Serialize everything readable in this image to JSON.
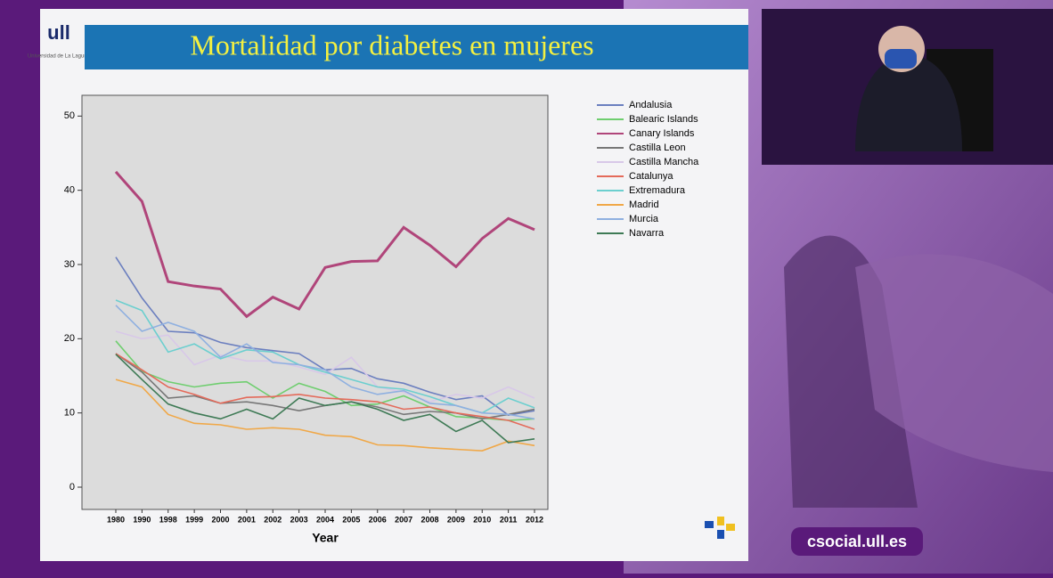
{
  "chart_data": {
    "type": "line",
    "title": "Mortalidad por diabetes en mujeres",
    "x_label": "Year",
    "categories": [
      "1980",
      "1990",
      "1998",
      "1999",
      "2000",
      "2001",
      "2002",
      "2003",
      "2004",
      "2005",
      "2006",
      "2007",
      "2008",
      "2009",
      "2010",
      "2011",
      "2012"
    ],
    "ylim": [
      -3,
      52.8
    ],
    "yticks": [
      0,
      10,
      20,
      30,
      40,
      50
    ],
    "legend": "right",
    "series": [
      {
        "name": "Andalusia",
        "color": "#6b7fbf",
        "values": [
          31.0,
          25.5,
          21.0,
          20.8,
          19.5,
          18.8,
          18.4,
          18.0,
          15.8,
          16.0,
          14.6,
          14.0,
          12.8,
          11.8,
          12.3,
          9.7,
          10.3
        ]
      },
      {
        "name": "Balearic Islands",
        "color": "#6fce6f",
        "values": [
          19.7,
          15.6,
          14.2,
          13.5,
          14.0,
          14.2,
          12.0,
          14.0,
          12.9,
          11.0,
          11.2,
          12.3,
          10.8,
          9.5,
          9.3,
          9.0,
          9.2
        ]
      },
      {
        "name": "Canary Islands",
        "color": "#b0457a",
        "values": [
          42.5,
          38.5,
          27.7,
          27.1,
          26.7,
          23.0,
          25.6,
          24.0,
          29.6,
          30.4,
          30.5,
          35.0,
          32.6,
          29.7,
          33.5,
          36.2,
          34.7
        ]
      },
      {
        "name": "Castilla Leon",
        "color": "#777777",
        "values": [
          18.0,
          15.5,
          12.0,
          12.3,
          11.3,
          11.5,
          11.0,
          10.3,
          11.0,
          11.5,
          10.8,
          9.8,
          10.2,
          10.0,
          9.2,
          9.8,
          10.5
        ]
      },
      {
        "name": "Castilla Mancha",
        "color": "#d8c8e8",
        "values": [
          21.0,
          20.0,
          20.5,
          16.5,
          17.8,
          17.0,
          17.0,
          16.2,
          15.2,
          17.5,
          13.5,
          12.8,
          11.5,
          12.5,
          12.0,
          13.5,
          12.0
        ]
      },
      {
        "name": "Catalunya",
        "color": "#e46a5a",
        "values": [
          18.0,
          15.8,
          13.5,
          12.5,
          11.3,
          12.1,
          12.2,
          12.5,
          12.0,
          11.8,
          11.5,
          10.5,
          10.8,
          10.0,
          9.5,
          9.0,
          7.8
        ]
      },
      {
        "name": "Extremadura",
        "color": "#6ccfcf",
        "values": [
          25.2,
          23.8,
          18.2,
          19.3,
          17.3,
          18.5,
          18.2,
          16.5,
          15.5,
          14.5,
          13.5,
          13.2,
          12.2,
          11.0,
          10.0,
          12.0,
          10.7
        ]
      },
      {
        "name": "Madrid",
        "color": "#f0a848",
        "values": [
          14.5,
          13.5,
          9.8,
          8.6,
          8.4,
          7.8,
          8.0,
          7.8,
          7.0,
          6.8,
          5.7,
          5.6,
          5.3,
          5.1,
          4.9,
          6.2,
          5.6
        ]
      },
      {
        "name": "Murcia",
        "color": "#8fb0e0",
        "values": [
          24.5,
          21.0,
          22.2,
          21.0,
          17.5,
          19.3,
          16.8,
          16.5,
          15.8,
          13.5,
          12.5,
          13.0,
          11.3,
          11.0,
          10.0,
          9.8,
          9.2
        ]
      },
      {
        "name": "Navarra",
        "color": "#3e7a55",
        "values": [
          17.9,
          14.5,
          11.2,
          10.0,
          9.2,
          10.5,
          9.2,
          12.0,
          11.0,
          11.5,
          10.5,
          9.0,
          9.8,
          7.5,
          9.0,
          6.0,
          6.5
        ]
      }
    ]
  },
  "logo_text": "Universidad de La Laguna",
  "watermark": "csocial.ull.es"
}
